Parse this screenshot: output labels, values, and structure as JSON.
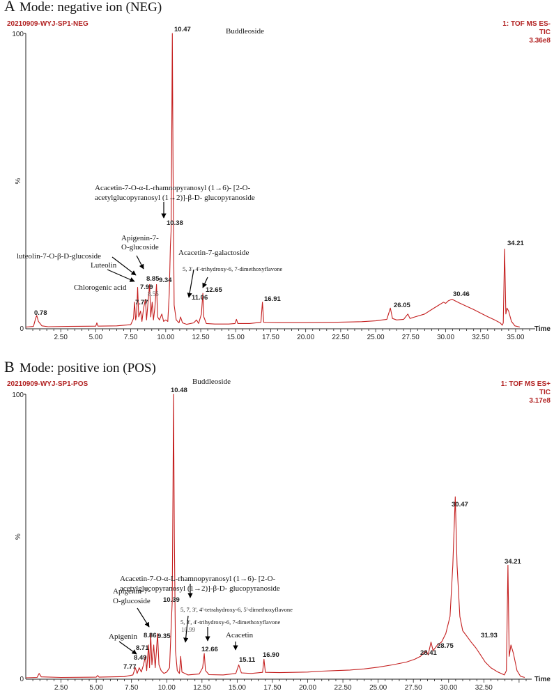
{
  "chart_data": [
    {
      "type": "line",
      "panel_letter": "A",
      "title": "Mode: negative ion (NEG)",
      "sample": "20210909-WYJ-SP1-NEG",
      "detector": [
        "1: TOF MS ES-",
        "TIC",
        "3.36e8"
      ],
      "xlabel": "Time",
      "ylabel_top": "100",
      "ylabel_mid": "%",
      "ylabel_bottom": "0",
      "xlim": [
        0,
        36
      ],
      "ylim": [
        0,
        100
      ],
      "xticks": [
        "2.50",
        "5.00",
        "7.50",
        "10.00",
        "12.50",
        "15.00",
        "17.50",
        "20.00",
        "22.50",
        "25.00",
        "27.50",
        "30.00",
        "32.50",
        "35.00"
      ],
      "xtick_values": [
        2.5,
        5,
        7.5,
        10,
        12.5,
        15,
        17.5,
        20,
        22.5,
        25,
        27.5,
        30,
        32.5,
        35
      ],
      "peaks": [
        {
          "rt": 0.78,
          "label": "0.78",
          "y": 4.5
        },
        {
          "rt": 7.77,
          "label": "7.77",
          "y": 9
        },
        {
          "rt": 7.99,
          "label": "7.99",
          "y": 14
        },
        {
          "rt": 8.55,
          "label": "8.55",
          "y": 10,
          "small": true
        },
        {
          "rt": 8.85,
          "label": "8.85",
          "y": 15
        },
        {
          "rt": 9.34,
          "label": "9.34",
          "y": 15
        },
        {
          "rt": 10.38,
          "label": "10.38",
          "y": 33
        },
        {
          "rt": 10.47,
          "label": "10.47",
          "y": 100
        },
        {
          "rt": 11.06,
          "label": "11.06",
          "y": 4
        },
        {
          "rt": 12.65,
          "label": "12.65",
          "y": 12
        },
        {
          "rt": 16.91,
          "label": "16.91",
          "y": 9
        },
        {
          "rt": 26.05,
          "label": "26.05",
          "y": 7
        },
        {
          "rt": 30.46,
          "label": "30.46",
          "y": 10
        },
        {
          "rt": 34.21,
          "label": "34.21",
          "y": 27
        }
      ],
      "annotations": [
        {
          "lines": [
            "Buddleoside"
          ]
        },
        {
          "lines": [
            "Acacetin-7-O-α-L-rhamnopyranosyl (1→6)- [2-O-",
            "acetylglucopyranosyl (1→2)]-β-D- glucopyranoside"
          ]
        },
        {
          "lines": [
            "Apigenin-7-",
            "O-glucoside"
          ]
        },
        {
          "lines": [
            "luteolin-7-O-β-D-glucoside"
          ]
        },
        {
          "lines": [
            "Luteolin"
          ]
        },
        {
          "lines": [
            "Acacetin-7-galactoside"
          ]
        },
        {
          "lines": [
            "5, 3', 4'-trihydroxy-6, 7-dimethoxyflavone"
          ]
        },
        {
          "lines": [
            "Chlorogenic acid"
          ]
        }
      ]
    },
    {
      "type": "line",
      "panel_letter": "B",
      "title": "Mode: positive ion (POS)",
      "sample": "20210909-WYJ-SP1-POS",
      "detector": [
        "1: TOF MS ES+",
        "TIC",
        "3.17e8"
      ],
      "xlabel": "Time",
      "ylabel_top": "100",
      "ylabel_mid": "%",
      "ylabel_bottom": "0",
      "xlim": [
        0,
        35.5
      ],
      "ylim": [
        0,
        100
      ],
      "xticks": [
        "2.50",
        "5.00",
        "7.50",
        "10.00",
        "12.50",
        "15.00",
        "17.50",
        "20.00",
        "22.50",
        "25.00",
        "27.50",
        "30.00",
        "32.50"
      ],
      "xtick_values": [
        2.5,
        5,
        7.5,
        10,
        12.5,
        15,
        17.5,
        20,
        22.5,
        25,
        27.5,
        30,
        32.5
      ],
      "peaks": [
        {
          "rt": 7.77,
          "label": "7.77",
          "y": 4
        },
        {
          "rt": 8.49,
          "label": "8.49",
          "y": 8
        },
        {
          "rt": 8.71,
          "label": "8.71",
          "y": 12
        },
        {
          "rt": 8.86,
          "label": "8.86",
          "y": 16
        },
        {
          "rt": 9.35,
          "label": "9.35",
          "y": 16
        },
        {
          "rt": 10.39,
          "label": "10.39",
          "y": 27
        },
        {
          "rt": 10.48,
          "label": "10.48",
          "y": 100
        },
        {
          "rt": 10.99,
          "label": "10.99",
          "y": 8,
          "small": true
        },
        {
          "rt": 12.66,
          "label": "12.66",
          "y": 9
        },
        {
          "rt": 15.11,
          "label": "15.11",
          "y": 5
        },
        {
          "rt": 16.9,
          "label": "16.90",
          "y": 7
        },
        {
          "rt": 28.41,
          "label": "28.41",
          "y": 10
        },
        {
          "rt": 28.75,
          "label": "28.75",
          "y": 13
        },
        {
          "rt": 30.47,
          "label": "30.47",
          "y": 64
        },
        {
          "rt": 31.93,
          "label": "31.93",
          "y": 11
        },
        {
          "rt": 34.21,
          "label": "34.21",
          "y": 40
        }
      ],
      "annotations": [
        {
          "lines": [
            "Buddleoside"
          ]
        },
        {
          "lines": [
            "Acacetin-7-O-α-L-rhamnopyranosyl (1→6)- [2-O-",
            "acetylglucopyranosyl (1→2)]-β-D- glucopyranoside"
          ]
        },
        {
          "lines": [
            "Apigenin-7-",
            "O-glucoside"
          ]
        },
        {
          "lines": [
            "5, 7, 3', 4'-tetrahydroxy-6, 5'-dimethoxyflavone"
          ]
        },
        {
          "lines": [
            "5, 3', 4'-trihydroxy-6, 7-dimethoxyflavone"
          ]
        },
        {
          "lines": [
            "Acacetin"
          ]
        },
        {
          "lines": [
            "Apigenin"
          ]
        }
      ]
    }
  ]
}
